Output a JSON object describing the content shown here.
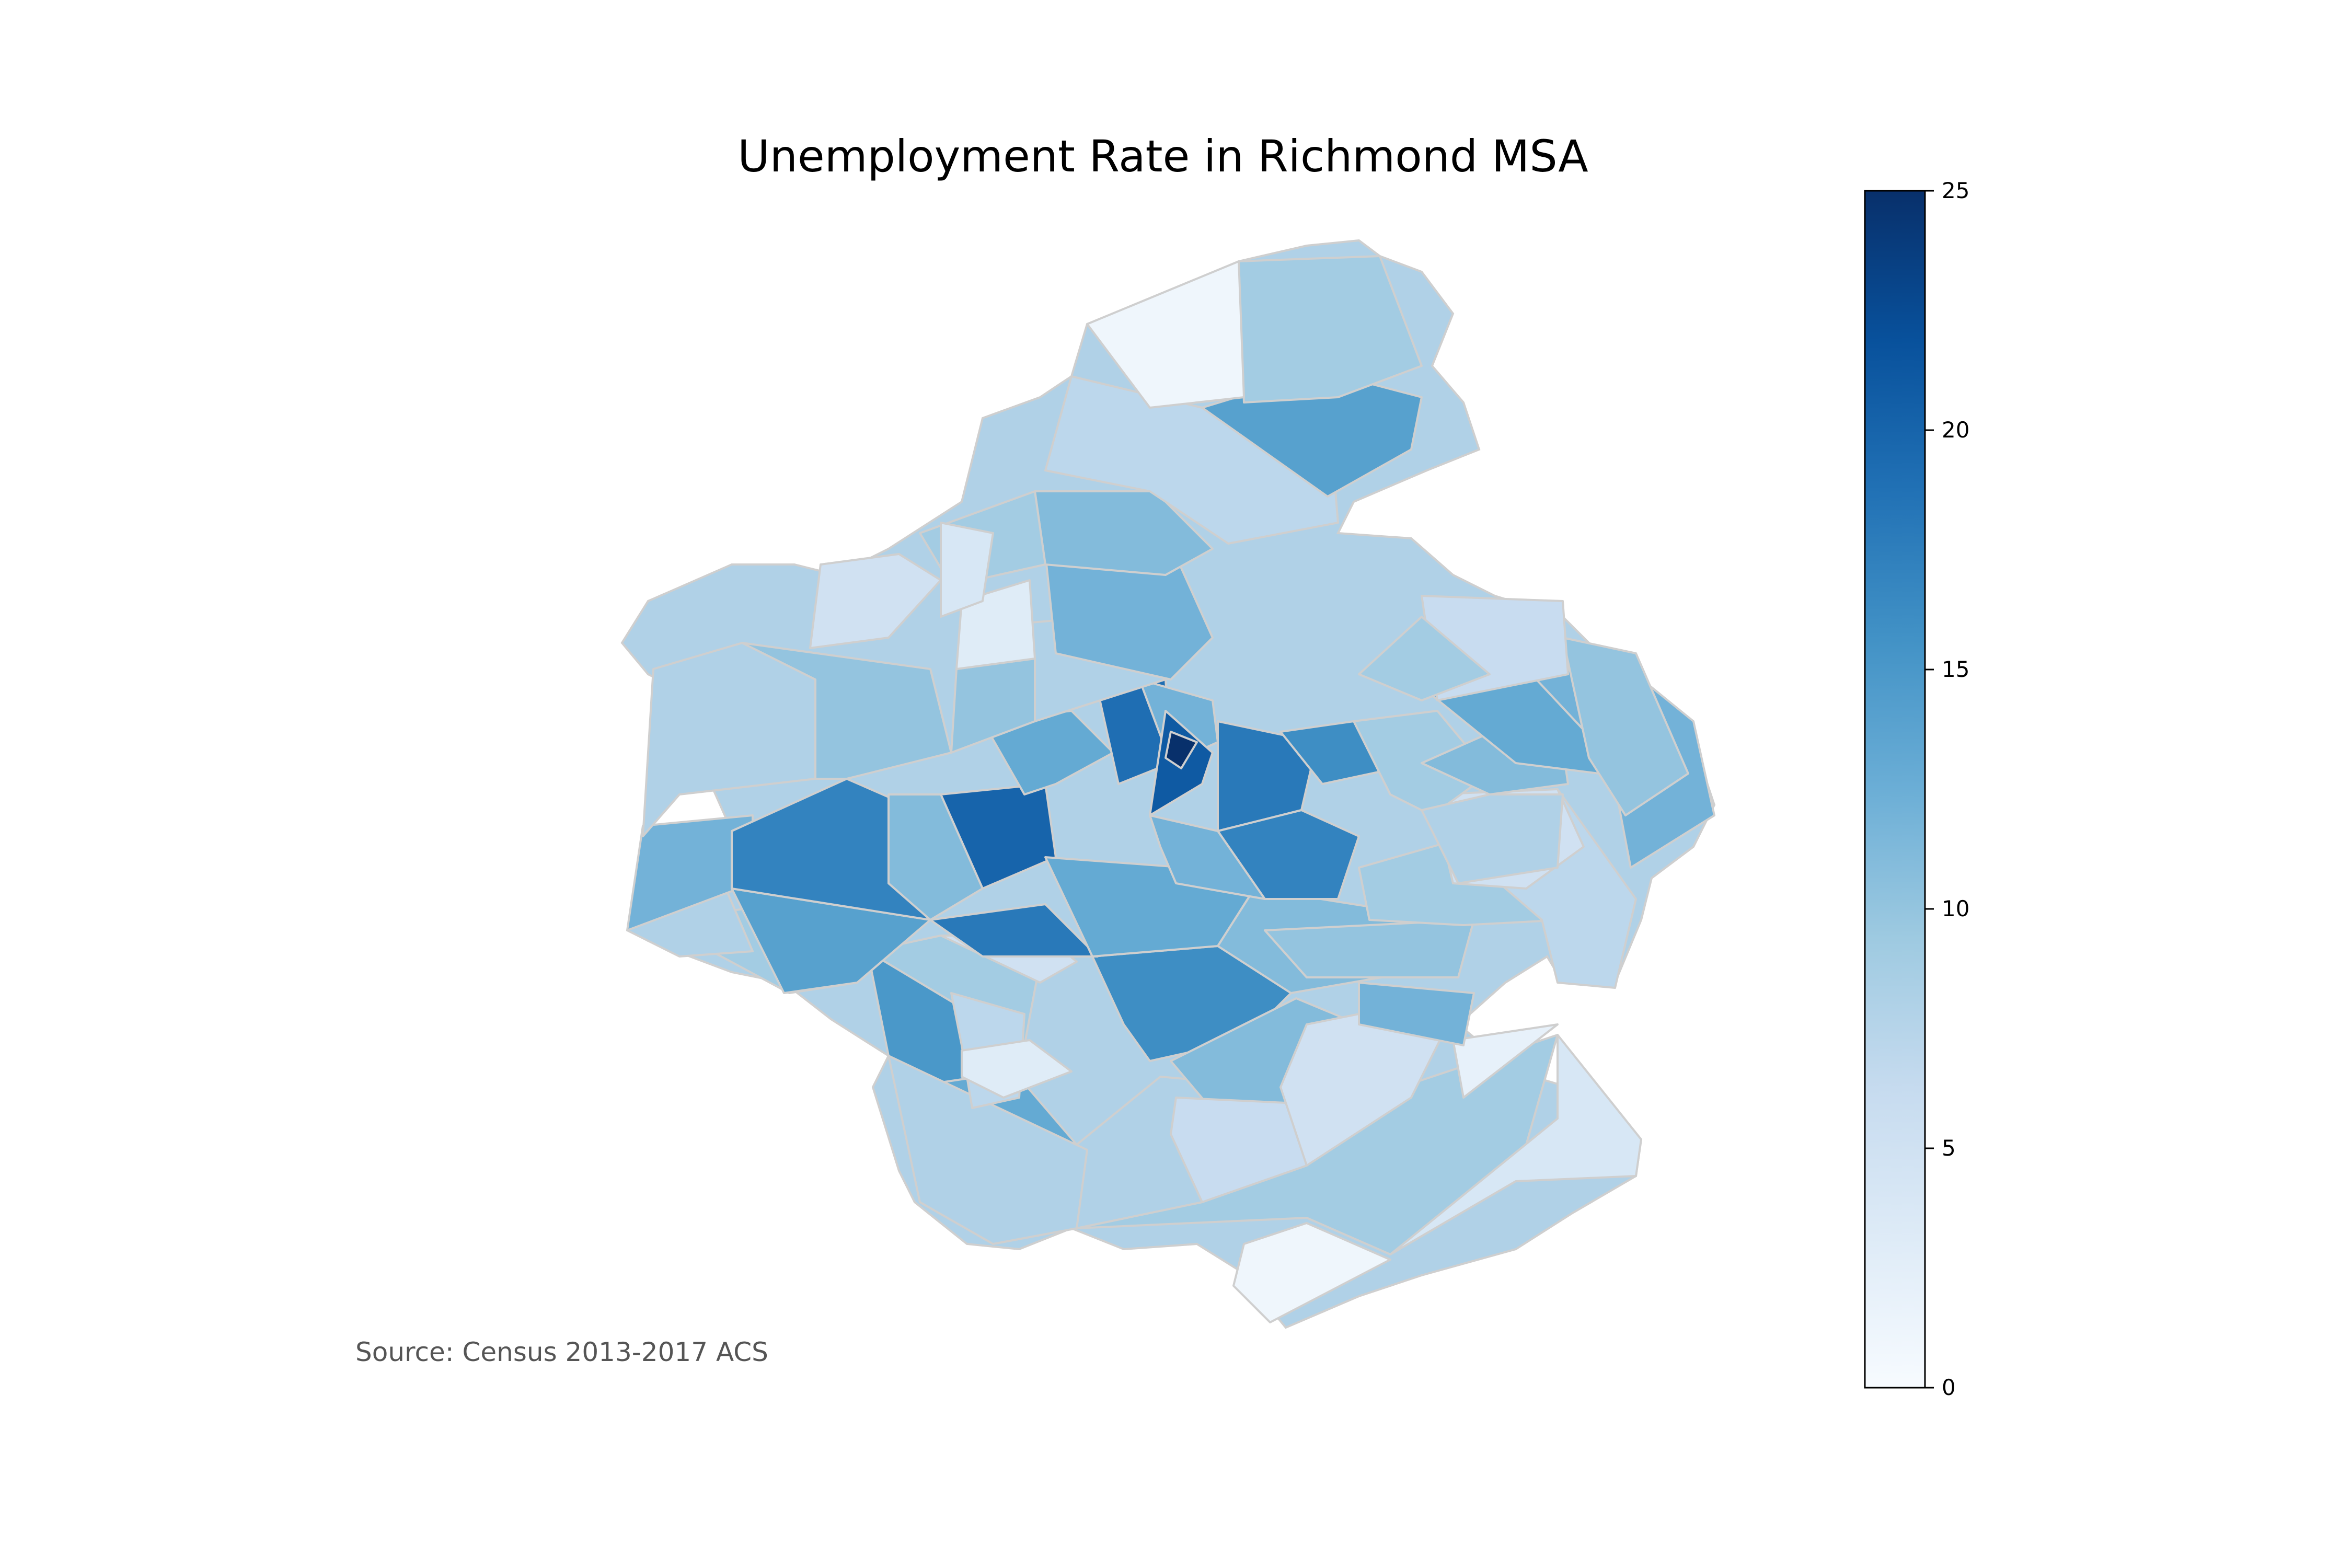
{
  "title": "Unemployment Rate in Richmond MSA",
  "source": "Source: Census 2013-2017 ACS",
  "colorbar": {
    "min": 0,
    "max": 25,
    "ticks": [
      "0",
      "5",
      "10",
      "15",
      "20",
      "25"
    ],
    "colormap": "Blues",
    "colors": [
      "#f7fbff",
      "#deebf7",
      "#c6dbef",
      "#9ecae1",
      "#6baed6",
      "#4292c6",
      "#2171b5",
      "#08519c",
      "#08306b"
    ]
  },
  "map": {
    "region": "Richmond MSA",
    "measure": "Unemployment rate (%)",
    "border_color": "#cfcfcf",
    "tract_values": [
      1,
      9,
      4,
      15,
      13,
      8,
      16,
      11,
      5,
      2,
      6,
      8,
      9,
      7,
      5,
      3,
      9,
      8,
      12,
      14,
      17,
      20,
      18,
      13,
      11,
      10,
      12,
      9,
      7,
      5,
      8,
      10,
      11,
      13,
      19,
      12,
      21,
      25,
      18,
      17,
      12,
      16,
      9,
      11,
      8,
      13,
      12,
      10,
      6,
      9,
      8,
      10,
      12,
      11,
      9,
      7,
      14,
      9,
      1,
      3,
      4,
      5
    ]
  }
}
